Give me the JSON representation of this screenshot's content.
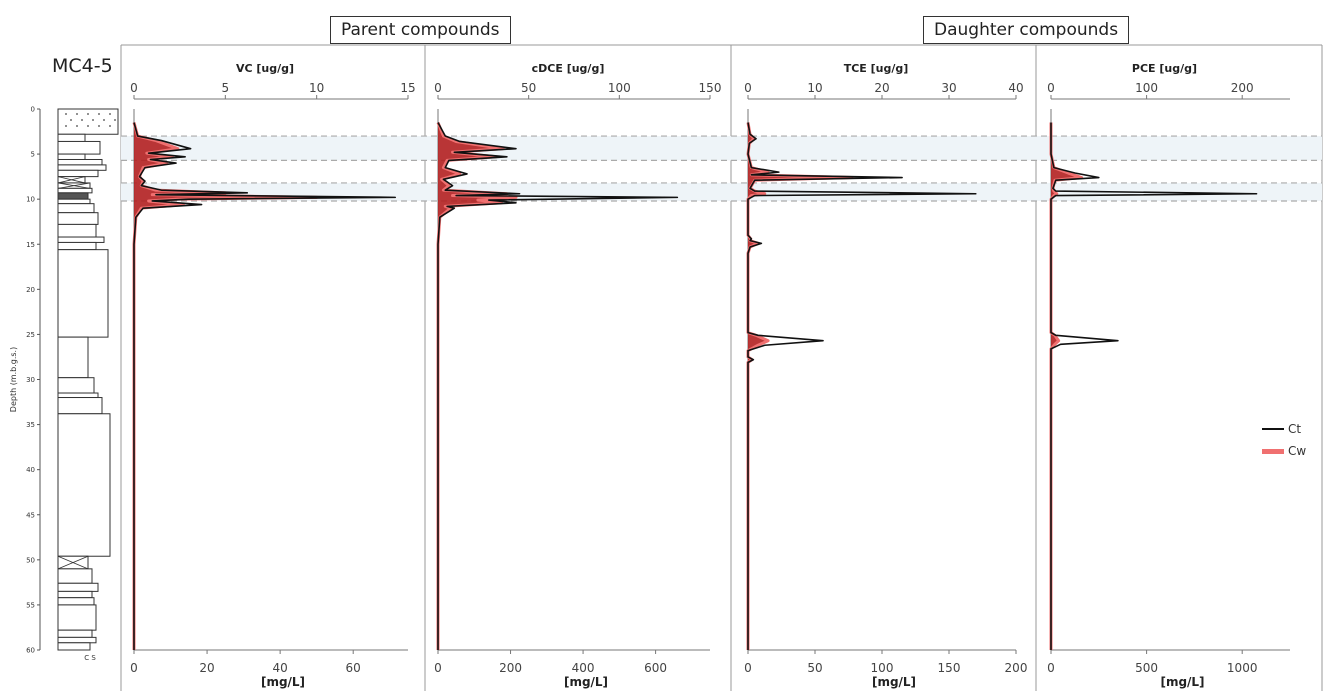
{
  "headers": {
    "parent": "Parent compounds",
    "daughter": "Daughter compounds"
  },
  "well_id": "MC4-5",
  "depth_axis": {
    "label": "Depth (m.b.g.s.)",
    "ticks": [
      0,
      5,
      10,
      15,
      20,
      25,
      30,
      35,
      40,
      45,
      50,
      55,
      60
    ],
    "range": [
      0,
      60
    ]
  },
  "lithology_scale_label": "C  S",
  "legend": [
    {
      "name": "Ct",
      "color": "#111111"
    },
    {
      "name": "Cw",
      "color": "#f07070"
    }
  ],
  "chart_data": [
    {
      "type": "line",
      "title": "VC [ug/g]",
      "top_ticks": [
        0,
        5,
        10,
        15
      ],
      "top_range": [
        0,
        15
      ],
      "bottom_ticks": [
        0,
        20,
        40,
        60
      ],
      "bottom_range": [
        0,
        75
      ],
      "bottom_label": "[mg/L]",
      "y_range": [
        0,
        60
      ],
      "series": [
        {
          "name": "Ct",
          "points": [
            [
              0,
              1.5
            ],
            [
              0.2,
              3
            ],
            [
              1.5,
              3.5
            ],
            [
              3.1,
              4.4
            ],
            [
              0.8,
              4.9
            ],
            [
              2.8,
              5.3
            ],
            [
              0.9,
              5.6
            ],
            [
              2.3,
              6.0
            ],
            [
              0.6,
              6.5
            ],
            [
              0.3,
              7.5
            ],
            [
              0.6,
              8.0
            ],
            [
              0.4,
              8.5
            ],
            [
              1.5,
              9.0
            ],
            [
              6.2,
              9.3
            ],
            [
              1.2,
              9.5
            ],
            [
              14.3,
              9.8
            ],
            [
              3.0,
              10.0
            ],
            [
              1.0,
              10.2
            ],
            [
              3.7,
              10.6
            ],
            [
              0.5,
              11.0
            ],
            [
              0.1,
              12
            ],
            [
              0,
              15
            ],
            [
              0,
              60
            ]
          ]
        },
        {
          "name": "Cw",
          "points": [
            [
              0,
              1.5
            ],
            [
              0.2,
              3
            ],
            [
              1.2,
              3.5
            ],
            [
              2.4,
              4.4
            ],
            [
              0.7,
              4.9
            ],
            [
              2.1,
              5.3
            ],
            [
              0.8,
              5.6
            ],
            [
              1.8,
              6.0
            ],
            [
              0.5,
              6.5
            ],
            [
              0.3,
              7.5
            ],
            [
              0.5,
              8.0
            ],
            [
              0.4,
              8.5
            ],
            [
              1.2,
              9.0
            ],
            [
              5.0,
              9.3
            ],
            [
              1.0,
              9.5
            ],
            [
              10.0,
              9.8
            ],
            [
              2.4,
              10.0
            ],
            [
              0.8,
              10.2
            ],
            [
              2.7,
              10.6
            ],
            [
              0.4,
              11.0
            ],
            [
              0.1,
              12
            ],
            [
              0,
              15
            ],
            [
              0,
              60
            ]
          ]
        }
      ]
    },
    {
      "type": "line",
      "title": "cDCE [ug/g]",
      "top_ticks": [
        0,
        50,
        100,
        150
      ],
      "top_range": [
        0,
        150
      ],
      "bottom_ticks": [
        0,
        200,
        400,
        600
      ],
      "bottom_range": [
        0,
        750
      ],
      "bottom_label": "[mg/L]",
      "y_range": [
        0,
        60
      ],
      "series": [
        {
          "name": "Ct",
          "points": [
            [
              0,
              1.5
            ],
            [
              4,
              3
            ],
            [
              12,
              3.6
            ],
            [
              43,
              4.4
            ],
            [
              9,
              4.8
            ],
            [
              38,
              5.3
            ],
            [
              6,
              5.7
            ],
            [
              4,
              6.5
            ],
            [
              16,
              7.2
            ],
            [
              3,
              7.8
            ],
            [
              8,
              8.5
            ],
            [
              4,
              9.0
            ],
            [
              45,
              9.4
            ],
            [
              10,
              9.6
            ],
            [
              132,
              9.8
            ],
            [
              28,
              10.1
            ],
            [
              43,
              10.4
            ],
            [
              5,
              10.8
            ],
            [
              9,
              11.0
            ],
            [
              1,
              12
            ],
            [
              0,
              15
            ],
            [
              0,
              60
            ]
          ]
        },
        {
          "name": "Cw",
          "points": [
            [
              0,
              1.5
            ],
            [
              3,
              3
            ],
            [
              10,
              3.6
            ],
            [
              36,
              4.4
            ],
            [
              8,
              4.8
            ],
            [
              32,
              5.3
            ],
            [
              5,
              5.7
            ],
            [
              3,
              6.5
            ],
            [
              12,
              7.2
            ],
            [
              2,
              7.8
            ],
            [
              6,
              8.5
            ],
            [
              3,
              9.0
            ],
            [
              38,
              9.4
            ],
            [
              8,
              9.6
            ],
            [
              43,
              9.8
            ],
            [
              22,
              10.1
            ],
            [
              35,
              10.4
            ],
            [
              4,
              10.8
            ],
            [
              7,
              11.0
            ],
            [
              1,
              12
            ],
            [
              0,
              15
            ],
            [
              0,
              60
            ]
          ]
        }
      ]
    },
    {
      "type": "line",
      "title": "TCE [ug/g]",
      "top_ticks": [
        0,
        10,
        20,
        30,
        40
      ],
      "top_range": [
        0,
        40
      ],
      "bottom_ticks": [
        0,
        50,
        100,
        150,
        200
      ],
      "bottom_range": [
        0,
        200
      ],
      "bottom_label": "[mg/L]",
      "y_range": [
        0,
        60
      ],
      "series": [
        {
          "name": "Ct",
          "points": [
            [
              0,
              1.5
            ],
            [
              0.3,
              2.8
            ],
            [
              1.2,
              3.3
            ],
            [
              0.2,
              3.8
            ],
            [
              0,
              5
            ],
            [
              0.5,
              6.5
            ],
            [
              4.6,
              7.0
            ],
            [
              0.5,
              7.3
            ],
            [
              23,
              7.6
            ],
            [
              1,
              7.9
            ],
            [
              0.3,
              8.8
            ],
            [
              1,
              9.1
            ],
            [
              34,
              9.4
            ],
            [
              1,
              9.6
            ],
            [
              0,
              10
            ],
            [
              0,
              14
            ],
            [
              0.5,
              14.4
            ],
            [
              0.3,
              14.6
            ],
            [
              2.0,
              14.9
            ],
            [
              0.3,
              15.3
            ],
            [
              0,
              16
            ],
            [
              0,
              24.8
            ],
            [
              1.5,
              25.1
            ],
            [
              11.2,
              25.7
            ],
            [
              2.5,
              26.2
            ],
            [
              0,
              26.8
            ],
            [
              0,
              27.5
            ],
            [
              0.8,
              27.8
            ],
            [
              0,
              28.1
            ],
            [
              0,
              60
            ]
          ]
        },
        {
          "name": "Cw",
          "points": [
            [
              0,
              1.5
            ],
            [
              0.3,
              2.8
            ],
            [
              0.9,
              3.3
            ],
            [
              0.2,
              3.8
            ],
            [
              0,
              5
            ],
            [
              0.5,
              6.5
            ],
            [
              3.0,
              7.0
            ],
            [
              0.5,
              7.3
            ],
            [
              15.5,
              7.6
            ],
            [
              1,
              7.9
            ],
            [
              0.3,
              8.8
            ],
            [
              1,
              9.1
            ],
            [
              2.5,
              9.4
            ],
            [
              0.5,
              9.6
            ],
            [
              0,
              10
            ],
            [
              0,
              14
            ],
            [
              0.4,
              14.4
            ],
            [
              0.3,
              14.6
            ],
            [
              1.5,
              14.9
            ],
            [
              0.3,
              15.3
            ],
            [
              0,
              16
            ],
            [
              0,
              24.8
            ],
            [
              1.2,
              25.1
            ],
            [
              3.0,
              25.7
            ],
            [
              1.5,
              26.2
            ],
            [
              0,
              26.8
            ],
            [
              0,
              27.5
            ],
            [
              0.6,
              27.8
            ],
            [
              0,
              28.1
            ],
            [
              0,
              60
            ]
          ]
        }
      ]
    },
    {
      "type": "line",
      "title": "PCE [ug/g]",
      "top_ticks": [
        0,
        100,
        200
      ],
      "top_range": [
        0,
        250
      ],
      "bottom_ticks": [
        0,
        500,
        1000
      ],
      "bottom_range": [
        0,
        1250
      ],
      "bottom_label": "[mg/L]",
      "y_range": [
        0,
        60
      ],
      "series": [
        {
          "name": "Ct",
          "points": [
            [
              0,
              1.5
            ],
            [
              0,
              5
            ],
            [
              3,
              6.5
            ],
            [
              25,
              7.1
            ],
            [
              50,
              7.6
            ],
            [
              5,
              7.9
            ],
            [
              2,
              8.8
            ],
            [
              5,
              9.1
            ],
            [
              215,
              9.4
            ],
            [
              5,
              9.6
            ],
            [
              0,
              10
            ],
            [
              0,
              24.8
            ],
            [
              5,
              25.1
            ],
            [
              70,
              25.7
            ],
            [
              10,
              26.1
            ],
            [
              0,
              26.6
            ],
            [
              0,
              60
            ]
          ]
        },
        {
          "name": "Cw",
          "points": [
            [
              0,
              1.5
            ],
            [
              0,
              5
            ],
            [
              3,
              6.5
            ],
            [
              18,
              7.1
            ],
            [
              32,
              7.6
            ],
            [
              4,
              7.9
            ],
            [
              2,
              8.8
            ],
            [
              3,
              9.1
            ],
            [
              6,
              9.4
            ],
            [
              3,
              9.6
            ],
            [
              0,
              10
            ],
            [
              0,
              24.8
            ],
            [
              4,
              25.1
            ],
            [
              8,
              25.7
            ],
            [
              4,
              26.1
            ],
            [
              0,
              26.6
            ],
            [
              0,
              60
            ]
          ]
        }
      ]
    }
  ]
}
